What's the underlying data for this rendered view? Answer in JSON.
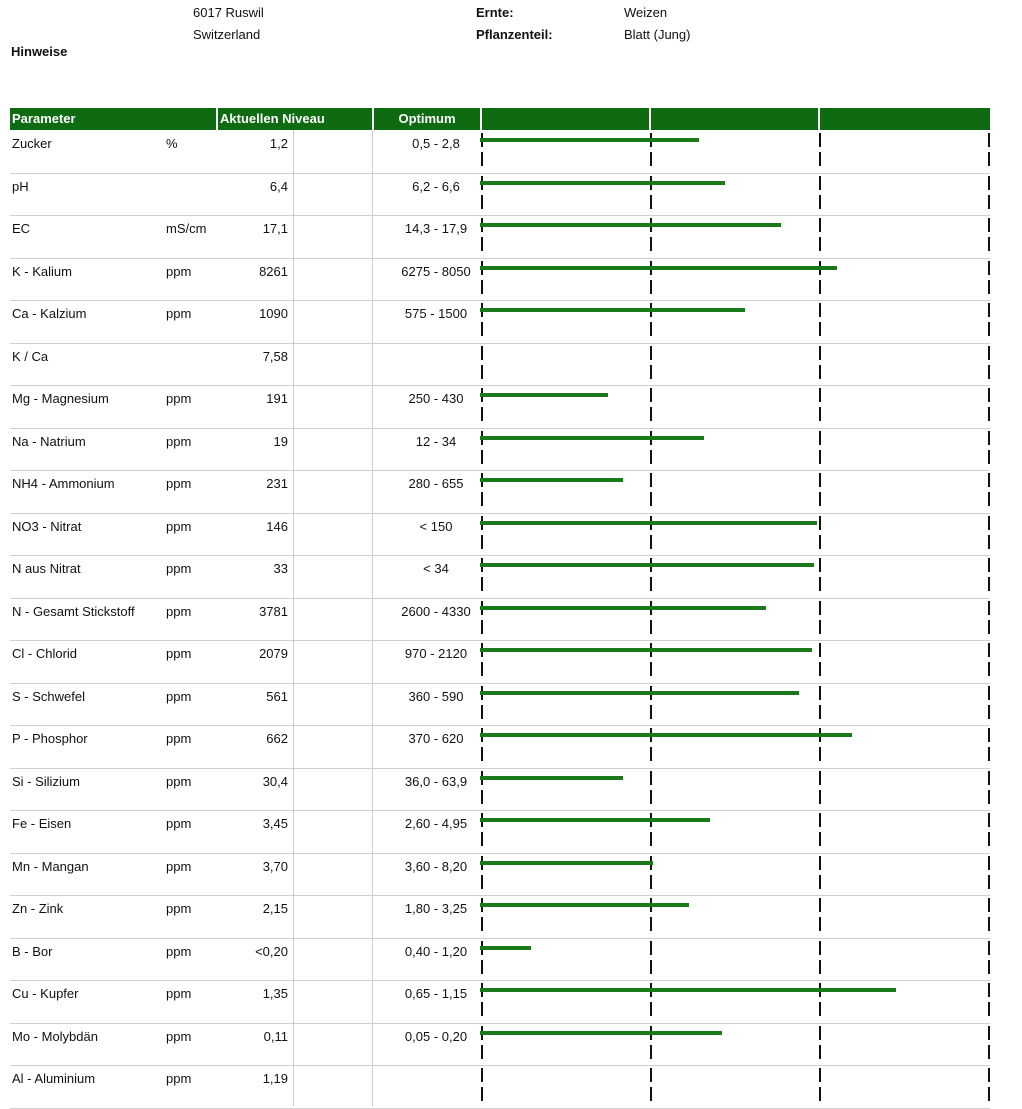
{
  "header": {
    "address_line1": "6017  Ruswil",
    "address_line2": "Switzerland",
    "notes_label": "Hinweise",
    "crop_label": "Ernte:",
    "crop_value": "Weizen",
    "plant_part_label": "Pflanzenteil:",
    "plant_part_value": "Blatt (Jung)"
  },
  "table": {
    "col_parameter": "Parameter",
    "col_level": "Aktuellen Niveau",
    "col_optimum": "Optimum",
    "bar_color": "#1a7a1a",
    "header_color": "#0e6b12",
    "rows": [
      {
        "parameter": "Zucker",
        "unit": "%",
        "value": "1,2",
        "optimum": "0,5 - 2,8",
        "bar_level": 0.43
      },
      {
        "parameter": "pH",
        "unit": "",
        "value": "6,4",
        "optimum": "6,2 - 6,6",
        "bar_level": 0.48
      },
      {
        "parameter": "EC",
        "unit": "mS/cm",
        "value": "17,1",
        "optimum": "14,3 - 17,9",
        "bar_level": 0.59
      },
      {
        "parameter": "K - Kalium",
        "unit": "ppm",
        "value": "8261",
        "optimum": "6275 - 8050",
        "bar_level": 0.7
      },
      {
        "parameter": "Ca - Kalzium",
        "unit": "ppm",
        "value": "1090",
        "optimum": "575 - 1500",
        "bar_level": 0.52
      },
      {
        "parameter": "K / Ca",
        "unit": "",
        "value": "7,58",
        "optimum": "",
        "bar_level": 0
      },
      {
        "parameter": "Mg - Magnesium",
        "unit": "ppm",
        "value": "191",
        "optimum": "250 - 430",
        "bar_level": 0.25
      },
      {
        "parameter": "Na - Natrium",
        "unit": "ppm",
        "value": "19",
        "optimum": "12 - 34",
        "bar_level": 0.44
      },
      {
        "parameter": "NH4 - Ammonium",
        "unit": "ppm",
        "value": "231",
        "optimum": "280 - 655",
        "bar_level": 0.28
      },
      {
        "parameter": "NO3 - Nitrat",
        "unit": "ppm",
        "value": "146",
        "optimum": "< 150",
        "bar_level": 0.66
      },
      {
        "parameter": "N aus Nitrat",
        "unit": "ppm",
        "value": "33",
        "optimum": "< 34",
        "bar_level": 0.655
      },
      {
        "parameter": "N - Gesamt Stickstoff",
        "unit": "ppm",
        "value": "3781",
        "optimum": "2600 - 4330",
        "bar_level": 0.56
      },
      {
        "parameter": "Cl - Chlorid",
        "unit": "ppm",
        "value": "2079",
        "optimum": "970 - 2120",
        "bar_level": 0.65
      },
      {
        "parameter": "S - Schwefel",
        "unit": "ppm",
        "value": "561",
        "optimum": "360 - 590",
        "bar_level": 0.625
      },
      {
        "parameter": "P - Phosphor",
        "unit": "ppm",
        "value": "662",
        "optimum": "370 - 620",
        "bar_level": 0.73
      },
      {
        "parameter": "Si - Silizium",
        "unit": "ppm",
        "value": "30,4",
        "optimum": "36,0 - 63,9",
        "bar_level": 0.28
      },
      {
        "parameter": "Fe - Eisen",
        "unit": "ppm",
        "value": "3,45",
        "optimum": "2,60 - 4,95",
        "bar_level": 0.45
      },
      {
        "parameter": "Mn - Mangan",
        "unit": "ppm",
        "value": "3,70",
        "optimum": "3,60 - 8,20",
        "bar_level": 0.34
      },
      {
        "parameter": "Zn - Zink",
        "unit": "ppm",
        "value": "2,15",
        "optimum": "1,80 - 3,25",
        "bar_level": 0.41
      },
      {
        "parameter": "B - Bor",
        "unit": "ppm",
        "value": "<0,20",
        "optimum": "0,40 - 1,20",
        "bar_level": 0.1
      },
      {
        "parameter": "Cu - Kupfer",
        "unit": "ppm",
        "value": "1,35",
        "optimum": "0,65 - 1,15",
        "bar_level": 0.815
      },
      {
        "parameter": "Mo - Molybdän",
        "unit": "ppm",
        "value": "0,11",
        "optimum": "0,05 - 0,20",
        "bar_level": 0.475
      },
      {
        "parameter": "Al - Aluminium",
        "unit": "ppm",
        "value": "1,19",
        "optimum": "",
        "bar_level": 0
      }
    ]
  }
}
